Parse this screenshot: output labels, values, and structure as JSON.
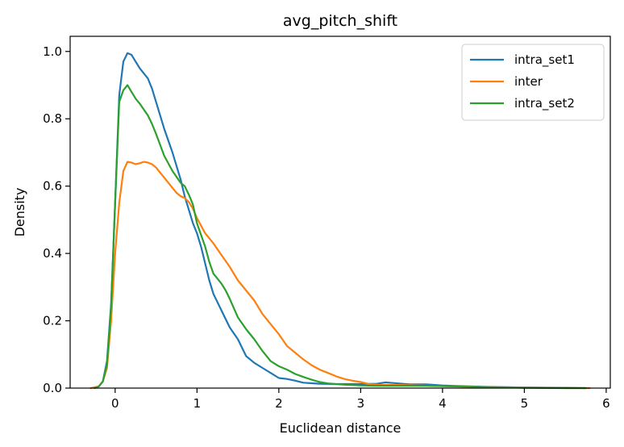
{
  "chart_data": {
    "type": "line",
    "title": "avg_pitch_shift",
    "xlabel": "Euclidean distance",
    "ylabel": "Density",
    "xlim": [
      -0.55,
      6.05
    ],
    "ylim": [
      0.0,
      1.045
    ],
    "xticks": [
      0,
      1,
      2,
      3,
      4,
      5,
      6
    ],
    "yticks": [
      0.0,
      0.2,
      0.4,
      0.6,
      0.8,
      1.0
    ],
    "xtick_labels": [
      "0",
      "1",
      "2",
      "3",
      "4",
      "5",
      "6"
    ],
    "ytick_labels": [
      "0.0",
      "0.2",
      "0.4",
      "0.6",
      "0.8",
      "1.0"
    ],
    "grid": false,
    "legend_position": "upper right",
    "series": [
      {
        "name": "intra_set1",
        "color": "#1f77b4",
        "points": [
          [
            -0.25,
            0.0
          ],
          [
            -0.2,
            0.005
          ],
          [
            -0.15,
            0.02
          ],
          [
            -0.1,
            0.08
          ],
          [
            -0.05,
            0.25
          ],
          [
            0.0,
            0.55
          ],
          [
            0.05,
            0.87
          ],
          [
            0.1,
            0.97
          ],
          [
            0.15,
            0.995
          ],
          [
            0.2,
            0.99
          ],
          [
            0.25,
            0.97
          ],
          [
            0.3,
            0.95
          ],
          [
            0.4,
            0.92
          ],
          [
            0.45,
            0.89
          ],
          [
            0.5,
            0.85
          ],
          [
            0.6,
            0.77
          ],
          [
            0.7,
            0.7
          ],
          [
            0.8,
            0.62
          ],
          [
            0.85,
            0.57
          ],
          [
            0.9,
            0.53
          ],
          [
            0.95,
            0.49
          ],
          [
            1.0,
            0.46
          ],
          [
            1.05,
            0.42
          ],
          [
            1.1,
            0.37
          ],
          [
            1.15,
            0.32
          ],
          [
            1.2,
            0.28
          ],
          [
            1.3,
            0.23
          ],
          [
            1.4,
            0.18
          ],
          [
            1.5,
            0.145
          ],
          [
            1.6,
            0.095
          ],
          [
            1.7,
            0.075
          ],
          [
            1.8,
            0.06
          ],
          [
            1.9,
            0.045
          ],
          [
            2.0,
            0.03
          ],
          [
            2.1,
            0.027
          ],
          [
            2.2,
            0.022
          ],
          [
            2.3,
            0.016
          ],
          [
            2.5,
            0.013
          ],
          [
            2.7,
            0.012
          ],
          [
            3.0,
            0.012
          ],
          [
            3.2,
            0.013
          ],
          [
            3.3,
            0.017
          ],
          [
            3.4,
            0.015
          ],
          [
            3.6,
            0.011
          ],
          [
            3.8,
            0.011
          ],
          [
            4.0,
            0.008
          ],
          [
            4.2,
            0.006
          ],
          [
            4.5,
            0.004
          ],
          [
            5.0,
            0.002
          ],
          [
            5.5,
            0.001
          ],
          [
            5.75,
            0.0
          ]
        ]
      },
      {
        "name": "inter",
        "color": "#ff7f0e",
        "points": [
          [
            -0.3,
            0.0
          ],
          [
            -0.2,
            0.005
          ],
          [
            -0.15,
            0.02
          ],
          [
            -0.1,
            0.06
          ],
          [
            -0.05,
            0.2
          ],
          [
            0.0,
            0.4
          ],
          [
            0.05,
            0.55
          ],
          [
            0.1,
            0.645
          ],
          [
            0.15,
            0.672
          ],
          [
            0.2,
            0.67
          ],
          [
            0.25,
            0.665
          ],
          [
            0.3,
            0.668
          ],
          [
            0.35,
            0.672
          ],
          [
            0.4,
            0.67
          ],
          [
            0.45,
            0.665
          ],
          [
            0.5,
            0.655
          ],
          [
            0.6,
            0.625
          ],
          [
            0.7,
            0.595
          ],
          [
            0.75,
            0.58
          ],
          [
            0.8,
            0.57
          ],
          [
            0.85,
            0.565
          ],
          [
            0.9,
            0.553
          ],
          [
            0.95,
            0.533
          ],
          [
            1.0,
            0.505
          ],
          [
            1.1,
            0.46
          ],
          [
            1.2,
            0.43
          ],
          [
            1.3,
            0.395
          ],
          [
            1.4,
            0.36
          ],
          [
            1.5,
            0.32
          ],
          [
            1.6,
            0.29
          ],
          [
            1.7,
            0.26
          ],
          [
            1.8,
            0.22
          ],
          [
            1.9,
            0.19
          ],
          [
            2.0,
            0.16
          ],
          [
            2.1,
            0.125
          ],
          [
            2.2,
            0.105
          ],
          [
            2.3,
            0.085
          ],
          [
            2.4,
            0.068
          ],
          [
            2.5,
            0.055
          ],
          [
            2.6,
            0.045
          ],
          [
            2.7,
            0.035
          ],
          [
            2.8,
            0.027
          ],
          [
            2.9,
            0.022
          ],
          [
            3.0,
            0.018
          ],
          [
            3.1,
            0.012
          ],
          [
            3.2,
            0.01
          ],
          [
            3.5,
            0.009
          ],
          [
            4.0,
            0.006
          ],
          [
            4.5,
            0.003
          ],
          [
            5.0,
            0.002
          ],
          [
            5.5,
            0.0
          ],
          [
            5.8,
            0.0
          ]
        ]
      },
      {
        "name": "intra_set2",
        "color": "#2ca02c",
        "points": [
          [
            -0.25,
            0.0
          ],
          [
            -0.2,
            0.005
          ],
          [
            -0.15,
            0.02
          ],
          [
            -0.1,
            0.07
          ],
          [
            -0.05,
            0.24
          ],
          [
            0.0,
            0.55
          ],
          [
            0.05,
            0.85
          ],
          [
            0.1,
            0.885
          ],
          [
            0.15,
            0.9
          ],
          [
            0.2,
            0.88
          ],
          [
            0.25,
            0.86
          ],
          [
            0.3,
            0.845
          ],
          [
            0.4,
            0.81
          ],
          [
            0.45,
            0.785
          ],
          [
            0.5,
            0.755
          ],
          [
            0.6,
            0.69
          ],
          [
            0.7,
            0.645
          ],
          [
            0.8,
            0.61
          ],
          [
            0.85,
            0.6
          ],
          [
            0.9,
            0.575
          ],
          [
            0.95,
            0.545
          ],
          [
            1.0,
            0.49
          ],
          [
            1.1,
            0.42
          ],
          [
            1.15,
            0.375
          ],
          [
            1.2,
            0.34
          ],
          [
            1.3,
            0.31
          ],
          [
            1.35,
            0.29
          ],
          [
            1.4,
            0.265
          ],
          [
            1.5,
            0.21
          ],
          [
            1.6,
            0.175
          ],
          [
            1.7,
            0.145
          ],
          [
            1.8,
            0.11
          ],
          [
            1.9,
            0.08
          ],
          [
            2.0,
            0.065
          ],
          [
            2.1,
            0.055
          ],
          [
            2.2,
            0.042
          ],
          [
            2.3,
            0.033
          ],
          [
            2.4,
            0.025
          ],
          [
            2.5,
            0.018
          ],
          [
            2.6,
            0.014
          ],
          [
            2.8,
            0.01
          ],
          [
            3.0,
            0.008
          ],
          [
            3.2,
            0.007
          ],
          [
            3.5,
            0.007
          ],
          [
            3.8,
            0.007
          ],
          [
            4.0,
            0.006
          ],
          [
            4.5,
            0.003
          ],
          [
            5.0,
            0.001
          ],
          [
            5.5,
            0.0
          ],
          [
            5.75,
            0.0
          ]
        ]
      }
    ]
  }
}
